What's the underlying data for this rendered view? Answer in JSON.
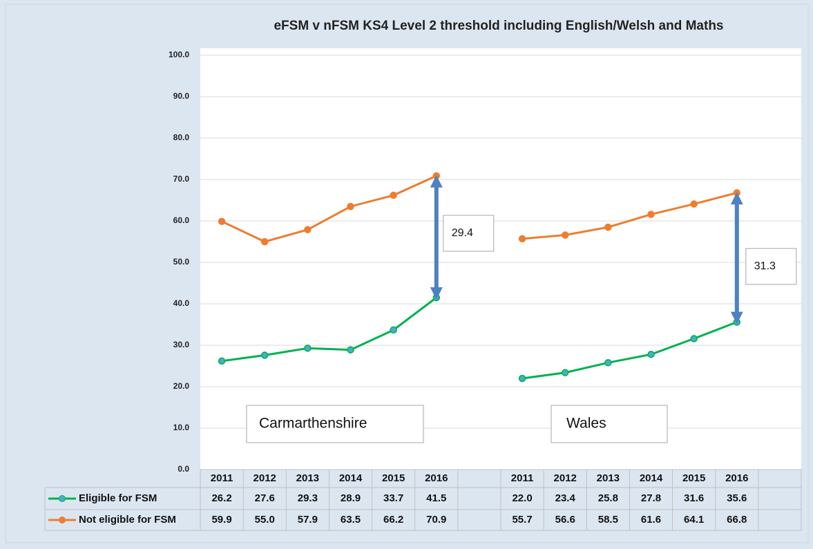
{
  "chart_data": {
    "type": "line",
    "title": "eFSM v nFSM KS4 Level 2 threshold including English/Welsh and Maths",
    "categories": [
      "2011",
      "2012",
      "2013",
      "2014",
      "2015",
      "2016",
      null,
      "2011",
      "2012",
      "2013",
      "2014",
      "2015",
      "2016",
      null
    ],
    "series": [
      {
        "name": "Eligible for FSM",
        "color": "#00b050",
        "values": [
          26.2,
          27.6,
          29.3,
          28.9,
          33.7,
          41.5,
          null,
          22.0,
          23.4,
          25.8,
          27.8,
          31.6,
          35.6,
          null
        ],
        "value_labels": [
          "26.2",
          "27.6",
          "29.3",
          "28.9",
          "33.7",
          "41.5",
          null,
          "22.0",
          "23.4",
          "25.8",
          "27.8",
          "31.6",
          "35.6",
          null
        ]
      },
      {
        "name": "Not eligible for FSM",
        "color": "#ed7d31",
        "values": [
          59.9,
          55.0,
          57.9,
          63.5,
          66.2,
          70.9,
          null,
          55.7,
          56.6,
          58.5,
          61.6,
          64.1,
          66.8,
          null
        ],
        "value_labels": [
          "59.9",
          "55.0",
          "57.9",
          "63.5",
          "66.2",
          "70.9",
          null,
          "55.7",
          "56.6",
          "58.5",
          "61.6",
          "64.1",
          "66.8",
          null
        ]
      }
    ],
    "ylim": [
      0,
      100
    ],
    "yticks": [
      {
        "value": 0,
        "label": "0.0"
      },
      {
        "value": 10,
        "label": "10.0"
      },
      {
        "value": 20,
        "label": "20.0"
      },
      {
        "value": 30,
        "label": "30.0"
      },
      {
        "value": 40,
        "label": "40.0"
      },
      {
        "value": 50,
        "label": "50.0"
      },
      {
        "value": 60,
        "label": "60.0"
      },
      {
        "value": 70,
        "label": "70.0"
      },
      {
        "value": 80,
        "label": "80.0"
      },
      {
        "value": 90,
        "label": "90.0"
      },
      {
        "value": 100,
        "label": "100.0"
      }
    ],
    "grid": true,
    "annotations": [
      {
        "text": "29.4",
        "category": 5
      },
      {
        "text": "31.3",
        "category": 12
      },
      {
        "text": "Carmarthenshire"
      },
      {
        "text": "Wales"
      }
    ]
  }
}
